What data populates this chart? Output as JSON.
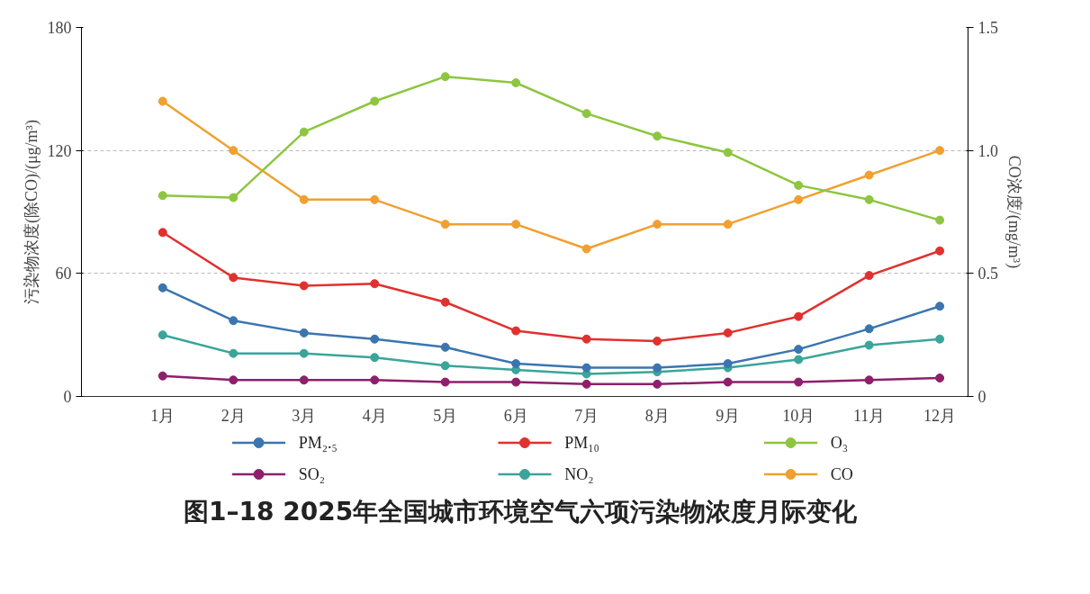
{
  "chart_data": {
    "type": "line",
    "title": "图1–18  2025年全国城市环境空气六项污染物浓度月际变化",
    "ylabel": "污染物浓度(除CO)/(μg/m³)",
    "y2label": "CO浓度/(mg/m³)",
    "categories": [
      "1月",
      "2月",
      "3月",
      "4月",
      "5月",
      "6月",
      "7月",
      "8月",
      "9月",
      "10月",
      "11月",
      "12月"
    ],
    "ylim": [
      0,
      180
    ],
    "yticks": [
      0,
      60,
      120,
      180
    ],
    "y2lim": [
      0,
      1.5
    ],
    "y2ticks": [
      {
        "value": 0,
        "label": "0"
      },
      0.5,
      {
        "value": 1.0,
        "label": "1.0"
      },
      1.5
    ],
    "grid": "y",
    "legend": "bottom",
    "marker": "circle",
    "line_style": "solid",
    "series": [
      {
        "name": "PM₂.₅",
        "color": "#3b75af",
        "values": [
          53,
          37,
          31,
          28,
          24,
          16,
          14,
          14,
          16,
          23,
          33,
          44
        ]
      },
      {
        "name": "PM₁₀",
        "color": "#e0312f",
        "values": [
          80,
          58,
          54,
          55,
          46,
          32,
          28,
          27,
          31,
          39,
          59,
          71
        ]
      },
      {
        "name": "O₃",
        "color": "#8dc63f",
        "values": [
          98,
          97,
          129,
          144,
          156,
          153,
          138,
          127,
          119,
          103,
          96,
          86
        ]
      },
      {
        "name": "SO₂",
        "color": "#8e1f6b",
        "values": [
          10,
          8,
          8,
          8,
          7,
          7,
          6,
          6,
          7,
          7,
          8,
          9
        ]
      },
      {
        "name": "NO₂",
        "color": "#3aa59a",
        "values": [
          30,
          21,
          21,
          19,
          15,
          13,
          11,
          12,
          14,
          18,
          25,
          28
        ]
      },
      {
        "name": "CO",
        "color": "#f0a030",
        "axis": "y2",
        "values": [
          1.2,
          1.0,
          0.8,
          0.8,
          0.7,
          0.7,
          0.6,
          0.7,
          0.7,
          0.8,
          0.9,
          1.0
        ]
      }
    ]
  }
}
